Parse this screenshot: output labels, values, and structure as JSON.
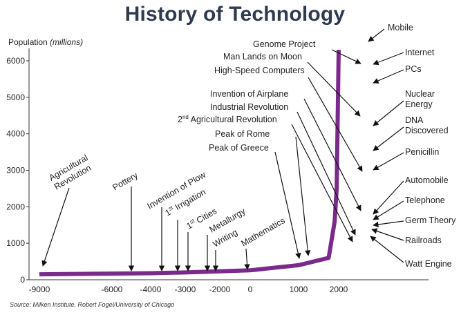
{
  "chart_data": {
    "type": "line",
    "title": "History of Technology",
    "ylabel": "Population",
    "ylabel_unit": "(millions)",
    "source": "Source: Milken Institute, Robert Fogel/University of Chicago",
    "xlim": [
      -9000,
      2900
    ],
    "ylim": [
      0,
      6500
    ],
    "x_ticks": [
      -9000,
      -6000,
      -4000,
      -3000,
      -2000,
      0,
      1000,
      2000
    ],
    "y_ticks": [
      0,
      1000,
      2000,
      3000,
      4000,
      5000,
      6000
    ],
    "color": "#7a2a8a",
    "series": [
      {
        "x": [
          -9000,
          -4000,
          -3000,
          -2000,
          0,
          1000,
          1750,
          1900,
          1950,
          2000
        ],
        "values": [
          150,
          180,
          200,
          230,
          260,
          400,
          600,
          1600,
          2500,
          6300
        ]
      }
    ],
    "annotations": [
      {
        "label": "Agricultural Revolution",
        "year": -9000
      },
      {
        "label": "Pottery",
        "year": -4500
      },
      {
        "label": "Invention of Plow",
        "year": -3750
      },
      {
        "label": "1st Irrigation",
        "year": -3200
      },
      {
        "label": "1st Cities",
        "year": -2900
      },
      {
        "label": "Metallurgy",
        "year": -2500
      },
      {
        "label": "Writing",
        "year": -2300
      },
      {
        "label": "Mathematics",
        "year": -300
      },
      {
        "label": "Peak of Greece",
        "year": 950
      },
      {
        "label": "Peak of Rome",
        "year": 1100
      },
      {
        "label": "2nd Agricultural Revolution",
        "year": 1730
      },
      {
        "label": "Industrial Revolution",
        "year": 1770
      },
      {
        "label": "Invention of Airplane",
        "year": 1903
      },
      {
        "label": "High-Speed Computers",
        "year": 1950
      },
      {
        "label": "Man Lands on Moon",
        "year": 1969
      },
      {
        "label": "Genome Project",
        "year": 1990
      },
      {
        "label": "Mobile",
        "year": 2000
      },
      {
        "label": "Internet",
        "year": 1995
      },
      {
        "label": "PCs",
        "year": 1980
      },
      {
        "label": "Nuclear Energy",
        "year": 1945
      },
      {
        "label": "DNA Discovered",
        "year": 1953
      },
      {
        "label": "Penicillin",
        "year": 1928
      },
      {
        "label": "Automobile",
        "year": 1885
      },
      {
        "label": "Telephone",
        "year": 1876
      },
      {
        "label": "Germ Theory",
        "year": 1860
      },
      {
        "label": "Railroads",
        "year": 1830
      },
      {
        "label": "Watt Engine",
        "year": 1775
      }
    ]
  }
}
